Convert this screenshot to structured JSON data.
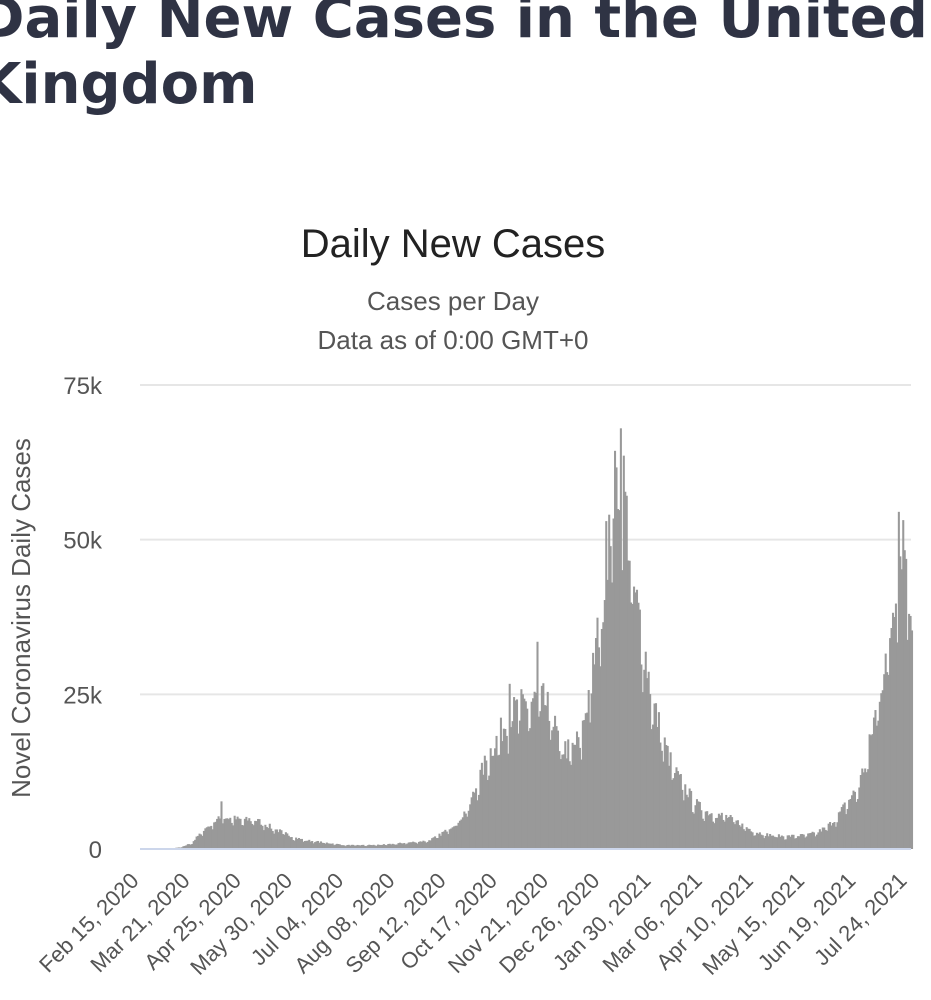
{
  "page": {
    "title": "Daily New Cases in the United Kingdom"
  },
  "chart_data": {
    "type": "bar",
    "title": "Daily New Cases",
    "subtitle": "Cases per Day",
    "subtitle2": "Data as of 0:00 GMT+0",
    "ylabel": "Novel Coronavirus Daily Cases",
    "ylim": [
      0,
      75000
    ],
    "yticks": [
      0,
      25000,
      50000,
      75000
    ],
    "ytick_labels": [
      "0",
      "25k",
      "50k",
      "75k"
    ],
    "grid": true,
    "legend": "none",
    "bar_color": "#999999",
    "grid_color": "#e6e6e6",
    "baseline_color": "#ccd6eb",
    "x_start": "Feb 15, 2020",
    "x_end": "Jul 26, 2021",
    "xtick_labels": [
      "Feb 15, 2020",
      "Mar 21, 2020",
      "Apr 25, 2020",
      "May 30, 2020",
      "Jul 04, 2020",
      "Aug 08, 2020",
      "Sep 12, 2020",
      "Oct 17, 2020",
      "Nov 21, 2020",
      "Dec 26, 2020",
      "Jan 30, 2021",
      "Mar 06, 2021",
      "Apr 10, 2021",
      "May 15, 2021",
      "Jun 19, 2021",
      "Jul 24, 2021"
    ],
    "weekly_points": [
      [
        "Feb 15, 2020",
        0
      ],
      [
        "Feb 29, 2020",
        10
      ],
      [
        "Mar 07, 2020",
        80
      ],
      [
        "Mar 14, 2020",
        300
      ],
      [
        "Mar 21, 2020",
        1000
      ],
      [
        "Mar 28, 2020",
        2800
      ],
      [
        "Apr 04, 2020",
        4200
      ],
      [
        "Apr 11, 2020",
        5000
      ],
      [
        "Apr 18, 2020",
        4800
      ],
      [
        "Apr 25, 2020",
        4500
      ],
      [
        "May 02, 2020",
        4700
      ],
      [
        "May 09, 2020",
        4000
      ],
      [
        "May 16, 2020",
        3200
      ],
      [
        "May 23, 2020",
        2500
      ],
      [
        "May 30, 2020",
        1800
      ],
      [
        "Jun 06, 2020",
        1400
      ],
      [
        "Jun 13, 2020",
        1200
      ],
      [
        "Jun 20, 2020",
        1000
      ],
      [
        "Jun 27, 2020",
        800
      ],
      [
        "Jul 04, 2020",
        600
      ],
      [
        "Jul 18, 2020",
        600
      ],
      [
        "Aug 01, 2020",
        700
      ],
      [
        "Aug 15, 2020",
        1000
      ],
      [
        "Aug 29, 2020",
        1300
      ],
      [
        "Sep 05, 2020",
        2000
      ],
      [
        "Sep 12, 2020",
        3200
      ],
      [
        "Sep 19, 2020",
        4500
      ],
      [
        "Sep 26, 2020",
        6500
      ],
      [
        "Oct 03, 2020",
        11000
      ],
      [
        "Oct 10, 2020",
        15000
      ],
      [
        "Oct 17, 2020",
        18000
      ],
      [
        "Oct 24, 2020",
        21000
      ],
      [
        "Oct 31, 2020",
        22500
      ],
      [
        "Nov 07, 2020",
        23000
      ],
      [
        "Nov 14, 2020",
        24000
      ],
      [
        "Nov 21, 2020",
        21500
      ],
      [
        "Nov 28, 2020",
        16000
      ],
      [
        "Dec 05, 2020",
        15500
      ],
      [
        "Dec 12, 2020",
        18000
      ],
      [
        "Dec 19, 2020",
        27000
      ],
      [
        "Dec 26, 2020",
        38000
      ],
      [
        "Jan 02, 2021",
        55000
      ],
      [
        "Jan 09, 2021",
        60000
      ],
      [
        "Jan 16, 2021",
        42000
      ],
      [
        "Jan 23, 2021",
        33000
      ],
      [
        "Jan 30, 2021",
        23000
      ],
      [
        "Feb 06, 2021",
        17000
      ],
      [
        "Feb 13, 2021",
        12500
      ],
      [
        "Feb 20, 2021",
        10000
      ],
      [
        "Feb 27, 2021",
        7500
      ],
      [
        "Mar 06, 2021",
        6000
      ],
      [
        "Mar 13, 2021",
        5500
      ],
      [
        "Mar 20, 2021",
        5200
      ],
      [
        "Mar 27, 2021",
        4500
      ],
      [
        "Apr 03, 2021",
        3500
      ],
      [
        "Apr 10, 2021",
        2700
      ],
      [
        "Apr 17, 2021",
        2300
      ],
      [
        "Apr 24, 2021",
        2100
      ],
      [
        "May 01, 2021",
        2000
      ],
      [
        "May 08, 2021",
        2100
      ],
      [
        "May 15, 2021",
        2200
      ],
      [
        "May 22, 2021",
        2600
      ],
      [
        "May 29, 2021",
        3500
      ],
      [
        "Jun 05, 2021",
        5000
      ],
      [
        "Jun 12, 2021",
        7500
      ],
      [
        "Jun 19, 2021",
        9500
      ],
      [
        "Jun 26, 2021",
        15000
      ],
      [
        "Jul 03, 2021",
        24000
      ],
      [
        "Jul 10, 2021",
        32000
      ],
      [
        "Jul 17, 2021",
        46000
      ],
      [
        "Jul 20, 2021",
        50000
      ],
      [
        "Jul 23, 2021",
        44000
      ],
      [
        "Jul 26, 2021",
        36000
      ]
    ],
    "spikes": [
      [
        "Apr 10, 2020",
        7700
      ],
      [
        "Oct 24, 2020",
        26700
      ],
      [
        "Nov 12, 2020",
        33500
      ],
      [
        "Dec 29, 2020",
        53000
      ],
      [
        "Jan 08, 2021",
        68000
      ],
      [
        "Jul 17, 2021",
        54500
      ]
    ]
  }
}
